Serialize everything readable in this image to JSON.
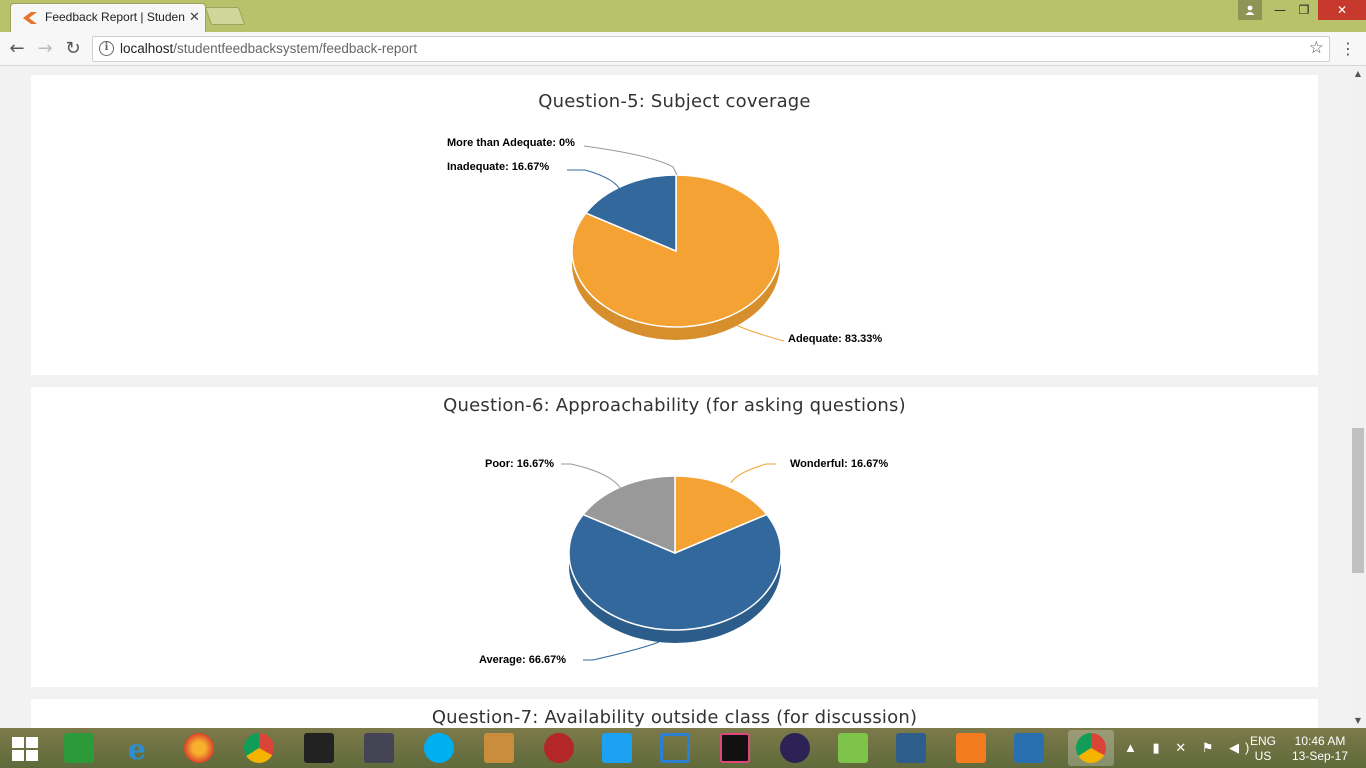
{
  "browser": {
    "tab_title": "Feedback Report | Student Feedback System",
    "tab_close": "✕",
    "url_host": "localhost",
    "url_path": "/studentfeedbacksystem/feedback-report",
    "window_controls": {
      "min": "—",
      "max": "❐",
      "close": "✕",
      "user": "👤"
    },
    "nav": {
      "back": "←",
      "forward": "→",
      "reload": "↻",
      "menu": "⋮",
      "star": "☆"
    }
  },
  "report": {
    "q5": {
      "title": "Question-5: Subject coverage",
      "labels": {
        "more_than_adequate": "More than Adequate: 0%",
        "inadequate": "Inadequate: 16.67%",
        "adequate": "Adequate: 83.33%"
      }
    },
    "q6": {
      "title": "Question-6: Approachability (for asking questions)",
      "labels": {
        "poor": "Poor: 16.67%",
        "wonderful": "Wonderful: 16.67%",
        "average": "Average: 66.67%"
      }
    },
    "q7": {
      "title": "Question-7: Availability outside class (for discussion)"
    }
  },
  "chart_data": [
    {
      "type": "pie",
      "title": "Question-5: Subject coverage",
      "categories": [
        "Adequate",
        "Inadequate",
        "More than Adequate"
      ],
      "values": [
        83.33,
        16.67,
        0
      ],
      "colors": [
        "#f4a233",
        "#32689c",
        "#999999"
      ]
    },
    {
      "type": "pie",
      "title": "Question-6: Approachability (for asking questions)",
      "categories": [
        "Wonderful",
        "Average",
        "Poor"
      ],
      "values": [
        16.67,
        66.67,
        16.67
      ],
      "colors": [
        "#f4a233",
        "#32689c",
        "#999999"
      ]
    }
  ],
  "taskbar": {
    "lang_top": "ENG",
    "lang_bottom": "US",
    "time": "10:46 AM",
    "date": "13-Sep-17"
  }
}
